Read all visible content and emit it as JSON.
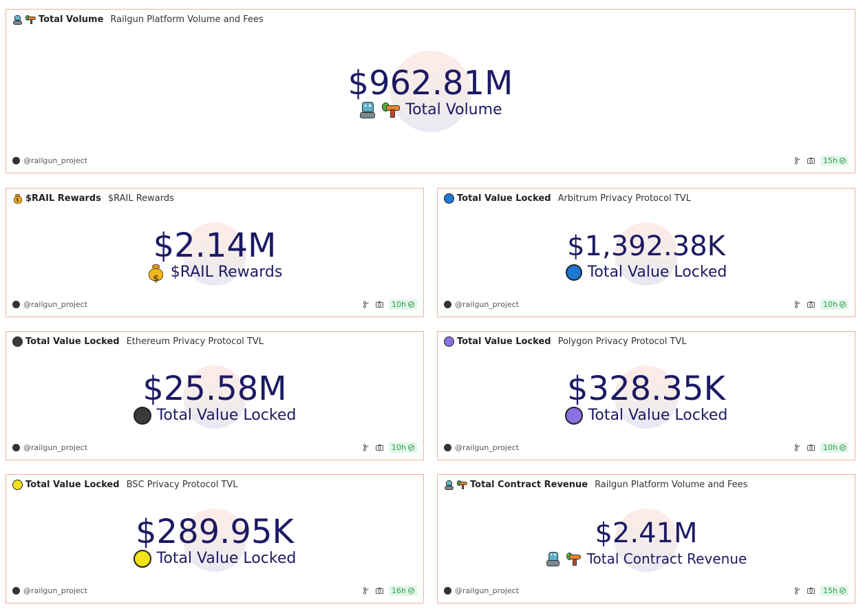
{
  "cards": {
    "total_volume": {
      "title": "Total Volume",
      "subtitle": "Railgun Platform Volume and Fees",
      "value": "$962.81M",
      "label": "Total Volume",
      "icon": [
        "robot-icon",
        "gun-icon"
      ],
      "author": "@railgun_project",
      "age": "15h"
    },
    "rail_rewards": {
      "title": "$RAIL Rewards",
      "subtitle": "$RAIL Rewards",
      "value": "$2.14M",
      "label": "$RAIL Rewards",
      "icon": "money-bag-icon",
      "author": "@railgun_project",
      "age": "10h"
    },
    "arbitrum_tvl": {
      "title": "Total Value Locked",
      "subtitle": "Arbitrum Privacy Protocol TVL",
      "value": "$1,392.38K",
      "label": "Total Value Locked",
      "icon_color": "#1e78d4",
      "author": "@railgun_project",
      "age": "10h"
    },
    "ethereum_tvl": {
      "title": "Total Value Locked",
      "subtitle": "Ethereum Privacy Protocol TVL",
      "value": "$25.58M",
      "label": "Total Value Locked",
      "icon_color": "#3a3a3a",
      "author": "@railgun_project",
      "age": "10h"
    },
    "polygon_tvl": {
      "title": "Total Value Locked",
      "subtitle": "Polygon Privacy Protocol TVL",
      "value": "$328.35K",
      "label": "Total Value Locked",
      "icon_color": "#8a70e0",
      "author": "@railgun_project",
      "age": "10h"
    },
    "bsc_tvl": {
      "title": "Total Value Locked",
      "subtitle": "BSC Privacy Protocol TVL",
      "value": "$289.95K",
      "label": "Total Value Locked",
      "icon_color": "#f4e21a",
      "author": "@railgun_project",
      "age": "16h"
    },
    "contract_revenue": {
      "title": "Total Contract Revenue",
      "subtitle": "Railgun Platform Volume and Fees",
      "value": "$2.41M",
      "label": "Total Contract Revenue",
      "icon": [
        "robot-icon",
        "gun-icon"
      ],
      "author": "@railgun_project",
      "age": "15h"
    }
  },
  "colors": {
    "value_text": "#1c1a63",
    "card_border": "#f0b0a6",
    "fresh_badge": "#2c9a50"
  }
}
